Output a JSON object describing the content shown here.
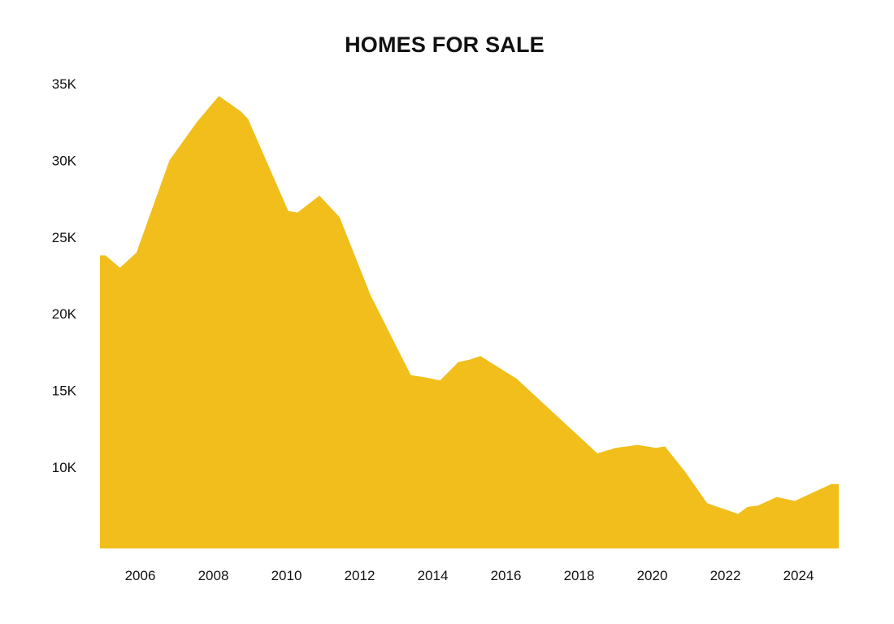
{
  "chart_data": {
    "type": "area",
    "title": "HOMES FOR SALE",
    "xlabel": "",
    "ylabel": "",
    "color": "#F1BE1B",
    "grid": false,
    "legend": "none",
    "xlim": [
      2004.9,
      2025.1
    ],
    "ylim": [
      4700,
      35000
    ],
    "x_ticks": [
      2006,
      2008,
      2010,
      2012,
      2014,
      2016,
      2018,
      2020,
      2022,
      2024
    ],
    "x_tick_labels": [
      "2006",
      "2008",
      "2010",
      "2012",
      "2014",
      "2016",
      "2018",
      "2020",
      "2022",
      "2024"
    ],
    "y_ticks": [
      10000,
      15000,
      20000,
      25000,
      30000,
      35000
    ],
    "y_tick_labels": [
      "10K",
      "15K",
      "20K",
      "25K",
      "30K",
      "35K"
    ],
    "x": [
      2004.9,
      2005.05,
      2005.45,
      2005.9,
      2006.8,
      2007.55,
      2008.15,
      2008.75,
      2008.95,
      2010.05,
      2010.3,
      2010.9,
      2011.45,
      2012.3,
      2013.4,
      2013.8,
      2014.2,
      2014.7,
      2015.0,
      2015.3,
      2016.3,
      2018.5,
      2019.0,
      2019.6,
      2020.1,
      2020.35,
      2020.9,
      2021.5,
      2022.35,
      2022.6,
      2022.9,
      2023.4,
      2023.9,
      2024.9,
      2025.1
    ],
    "y": [
      23800,
      23800,
      23000,
      24000,
      30000,
      32500,
      34200,
      33200,
      32700,
      26700,
      26600,
      27700,
      26300,
      21200,
      16000,
      15850,
      15650,
      16850,
      17000,
      17250,
      15750,
      10900,
      11250,
      11450,
      11250,
      11350,
      9700,
      7650,
      6950,
      7400,
      7500,
      8050,
      7800,
      8900,
      8900
    ]
  }
}
